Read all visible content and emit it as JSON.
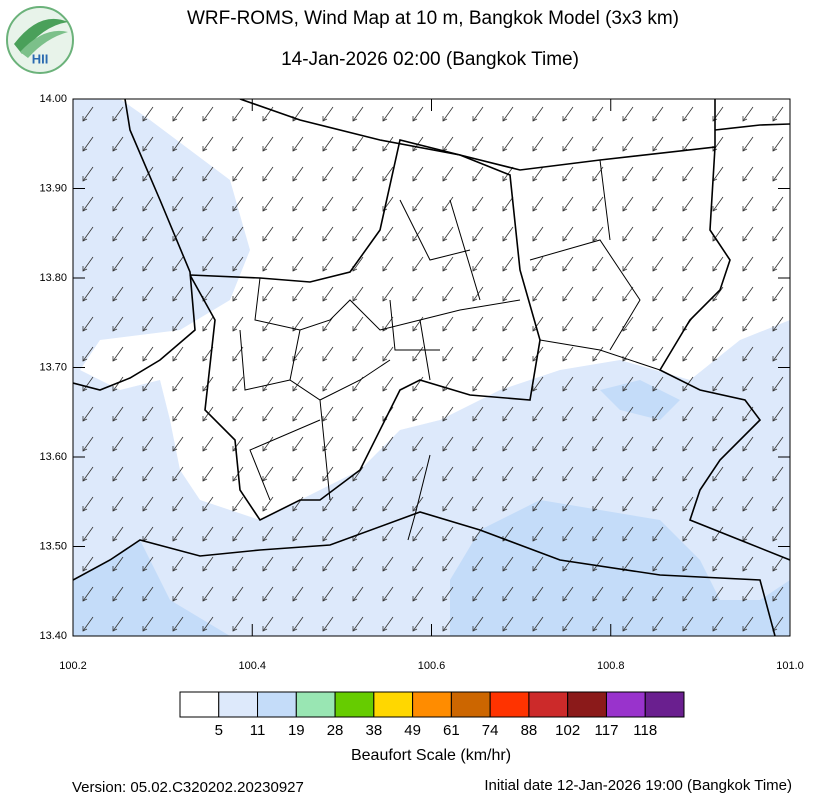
{
  "header": {
    "logo_text": "HII"
  },
  "chart_data": {
    "type": "wind-map",
    "title": "WRF-ROMS, Wind Map at 10 m, Bangkok Model (3x3 km)",
    "subtitle": "14-Jan-2026 02:00 (Bangkok Time)",
    "xlim": [
      100.2,
      101.0
    ],
    "ylim": [
      13.4,
      14.0
    ],
    "xticks": [
      100.2,
      100.4,
      100.6,
      100.8,
      {
        "value": 101.0,
        "label": "101.0"
      }
    ],
    "yticks": [
      {
        "value": 13.4,
        "label": "13.40"
      },
      {
        "value": 13.5,
        "label": "13.50"
      },
      {
        "value": 13.6,
        "label": "13.60"
      },
      {
        "value": 13.7,
        "label": "13.70"
      },
      {
        "value": 13.8,
        "label": "13.80"
      },
      {
        "value": 13.9,
        "label": "13.90"
      },
      {
        "value": 14.0,
        "label": "14.00"
      }
    ],
    "colorbar": {
      "title": "Beaufort Scale (km/hr)",
      "colors": [
        "#ffffff",
        "#dde9fb",
        "#c4dcf9",
        "#99e6b3",
        "#66cc00",
        "#ffd700",
        "#ff8c00",
        "#cc6600",
        "#ff3300",
        "#cc2a2a",
        "#8b1a1a",
        "#9933cc",
        "#6a1f8f"
      ],
      "labels": [
        5,
        11,
        19,
        28,
        38,
        49,
        61,
        74,
        88,
        102,
        117,
        118
      ]
    }
  },
  "footer": {
    "version": "Version: 05.02.C320202.20230927",
    "initial_date": "Initial date 12-Jan-2026 19:00 (Bangkok Time)"
  }
}
